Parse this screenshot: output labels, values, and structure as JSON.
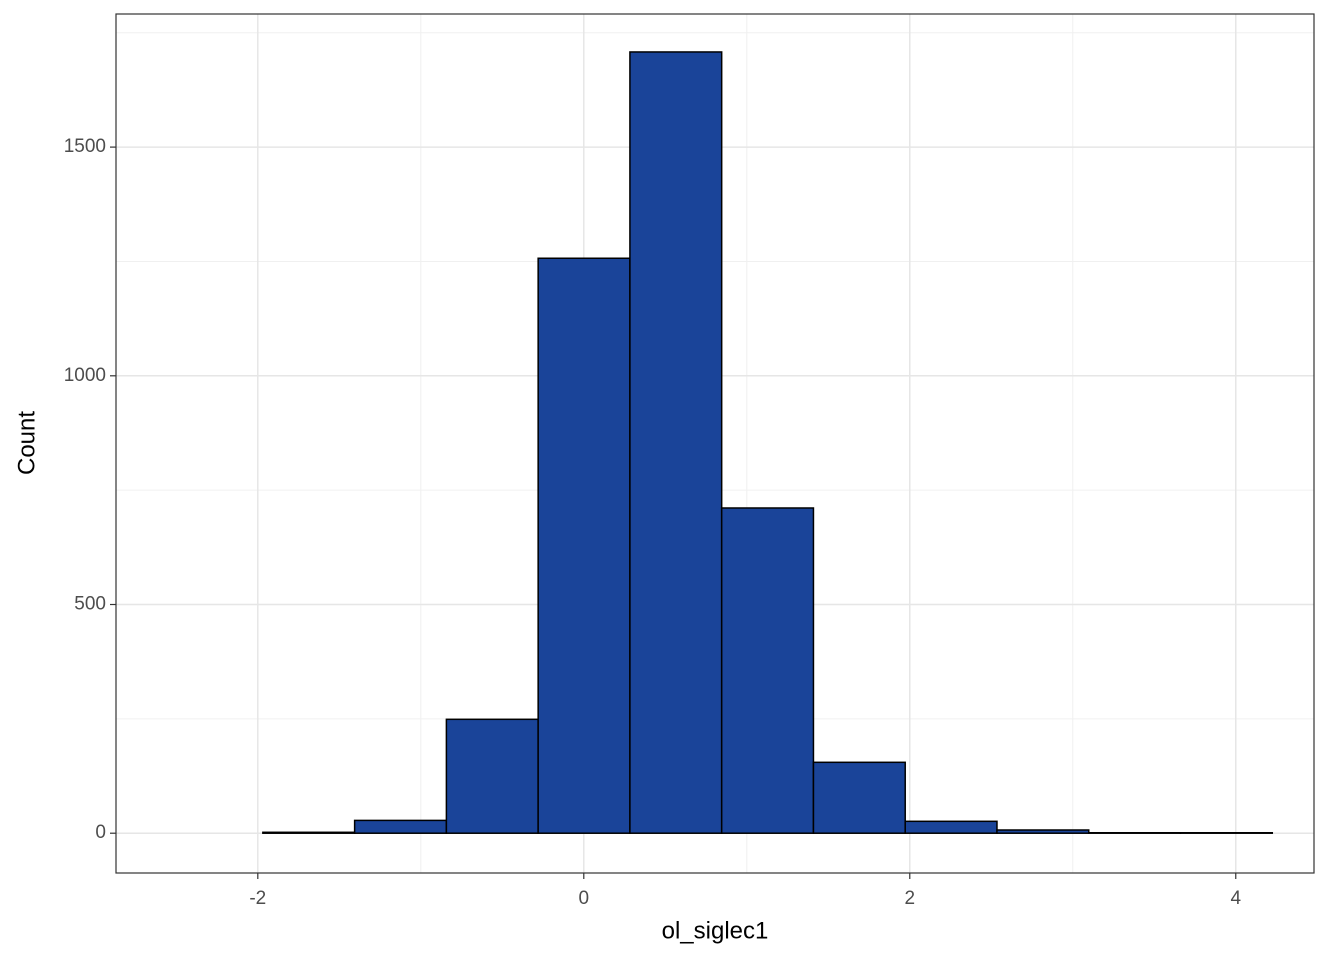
{
  "chart_data": {
    "type": "histogram",
    "x_label": "ol_siglec1",
    "y_label": "Count",
    "bins": [
      -2.532,
      -1.969,
      -1.406,
      -0.843,
      -0.28,
      0.283,
      0.846,
      1.409,
      1.972,
      2.535,
      3.098,
      3.661,
      4.224
    ],
    "values": [
      0,
      2,
      28,
      249,
      1257,
      1708,
      711,
      155,
      26,
      7,
      1,
      1
    ],
    "color": "#1a4499",
    "edge_color": "#000000",
    "xlim": [
      -2.87,
      4.48
    ],
    "ylim": [
      -87,
      1791
    ],
    "xticks": [
      -2,
      0,
      2,
      4
    ],
    "yticks": [
      0,
      500,
      1000,
      1500
    ],
    "x_minor_ticks": [
      -1,
      1,
      3
    ],
    "y_minor_ticks": [
      250,
      750,
      1250,
      1750
    ],
    "grid": true
  }
}
